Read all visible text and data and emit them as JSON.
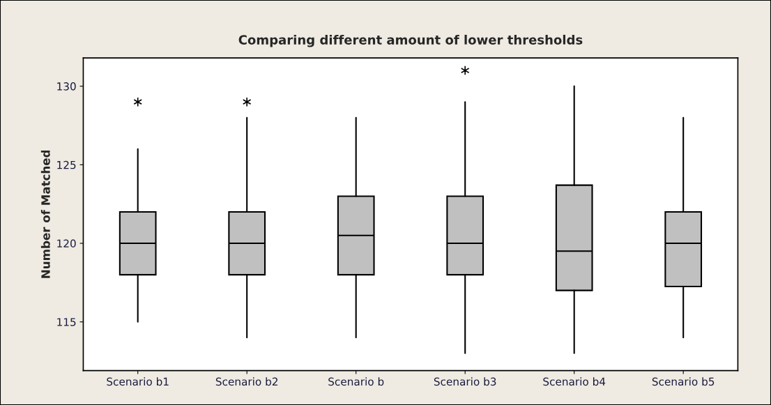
{
  "chart_data": {
    "type": "box",
    "title": "Comparing different amount of lower thresholds",
    "ylabel": "Number of Matched",
    "categories": [
      "Scenario b1",
      "Scenario b2",
      "Scenario b",
      "Scenario b3",
      "Scenario b4",
      "Scenario b5"
    ],
    "color": "#c0c0c0",
    "boxes": [
      {
        "low": 115,
        "q1": 118,
        "median": 120,
        "q3": 122,
        "high": 126,
        "outliers": [
          129
        ]
      },
      {
        "low": 114,
        "q1": 118,
        "median": 120,
        "q3": 122,
        "high": 128,
        "outliers": [
          129
        ]
      },
      {
        "low": 114,
        "q1": 118,
        "median": 120.5,
        "q3": 123,
        "high": 128
      },
      {
        "low": 113,
        "q1": 118,
        "median": 120,
        "q3": 123,
        "high": 129,
        "outliers": [
          131
        ]
      },
      {
        "low": 113,
        "q1": 117,
        "median": 119.5,
        "q3": 123.7,
        "high": 130
      },
      {
        "low": 114,
        "q1": 117.25,
        "median": 120,
        "q3": 122,
        "high": 128
      }
    ],
    "ylim": [
      111.9,
      131.8
    ],
    "yticks": [
      115,
      120,
      125,
      130
    ],
    "grid": false
  }
}
